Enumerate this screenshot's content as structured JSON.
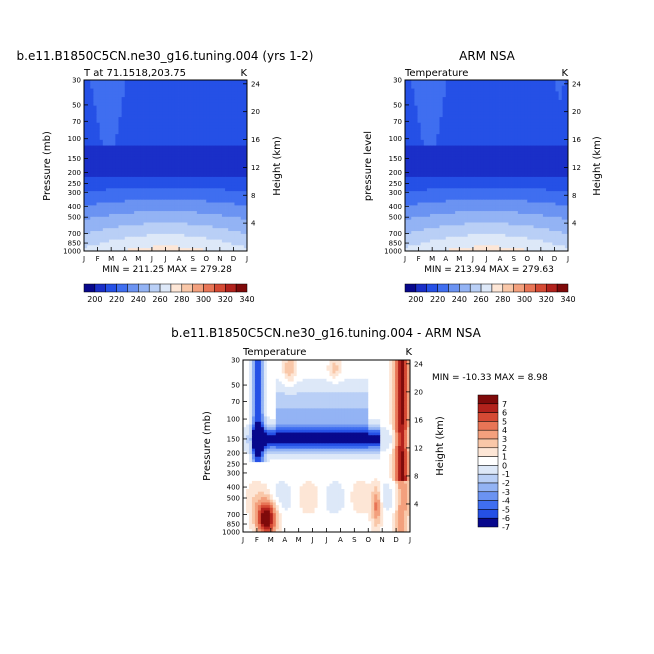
{
  "chart_data": [
    {
      "type": "heatmap",
      "title": "b.e11.B1850C5CN.ne30_g16.tuning.004 (yrs 1-2)",
      "subtitle": "T at 71.1518,203.75",
      "units": "K",
      "ylabel": "Pressure (mb)",
      "ylabel_right": "Height (km)",
      "x_ticks": [
        "J",
        "F",
        "M",
        "A",
        "M",
        "J",
        "J",
        "A",
        "S",
        "O",
        "N",
        "D",
        "J"
      ],
      "y_ticks": [
        "30",
        "50",
        "70",
        "100",
        "150",
        "200",
        "250",
        "300",
        "400",
        "500",
        "700",
        "850",
        "1000"
      ],
      "y_ticks_right": [
        "24",
        "20",
        "16",
        "12",
        "8",
        "4"
      ],
      "stats": "MIN = 211.25  MAX = 279.28",
      "colorbar_labels": [
        "200",
        "220",
        "240",
        "260",
        "280",
        "300",
        "320",
        "340"
      ]
    },
    {
      "type": "heatmap",
      "title": "ARM NSA",
      "subtitle": "Temperature",
      "units": "K",
      "ylabel": "pressure level",
      "ylabel_right": "Height (km)",
      "x_ticks": [
        "J",
        "F",
        "M",
        "A",
        "M",
        "J",
        "J",
        "A",
        "S",
        "O",
        "N",
        "D",
        "J"
      ],
      "y_ticks": [
        "30",
        "50",
        "70",
        "100",
        "150",
        "200",
        "250",
        "300",
        "400",
        "500",
        "700",
        "850",
        "1000"
      ],
      "y_ticks_right": [
        "24",
        "20",
        "16",
        "12",
        "8",
        "4"
      ],
      "stats": "MIN = 213.94  MAX = 279.63",
      "colorbar_labels": [
        "200",
        "220",
        "240",
        "260",
        "280",
        "300",
        "320",
        "340"
      ]
    },
    {
      "type": "heatmap",
      "title": "b.e11.B1850C5CN.ne30_g16.tuning.004 - ARM NSA",
      "subtitle": "Temperature",
      "units": "K",
      "ylabel": "Pressure (mb)",
      "ylabel_right": "Height (km)",
      "x_ticks": [
        "J",
        "F",
        "M",
        "A",
        "M",
        "J",
        "J",
        "A",
        "S",
        "O",
        "N",
        "D",
        "J"
      ],
      "y_ticks": [
        "30",
        "50",
        "70",
        "100",
        "150",
        "200",
        "250",
        "300",
        "400",
        "500",
        "700",
        "850",
        "1000"
      ],
      "y_ticks_right": [
        "24",
        "20",
        "16",
        "12",
        "8",
        "4"
      ],
      "stats": "MIN = -10.33  MAX =   8.98",
      "colorbar_labels": [
        "7",
        "6",
        "5",
        "4",
        "3",
        "2",
        "1",
        "0",
        "-1",
        "-2",
        "-3",
        "-4",
        "-5",
        "-6",
        "-7"
      ]
    }
  ],
  "colors": {
    "abs_scale": [
      "#08088c",
      "#1a2fc8",
      "#2550e6",
      "#3f6ef0",
      "#6b93f2",
      "#93b3f4",
      "#b9cff6",
      "#dde8f8",
      "#fde6d6",
      "#f9c7a8",
      "#f3a07d",
      "#e87556",
      "#d54a34",
      "#b2221c",
      "#7f0a0a"
    ],
    "diff_scale": [
      "#7f0a0a",
      "#b2221c",
      "#d54a34",
      "#e87556",
      "#f3a07d",
      "#f9c7a8",
      "#fde6d6",
      "#ffffff",
      "#dde8f8",
      "#b9cff6",
      "#93b3f4",
      "#6b93f2",
      "#3f6ef0",
      "#2550e6",
      "#08088c"
    ]
  }
}
